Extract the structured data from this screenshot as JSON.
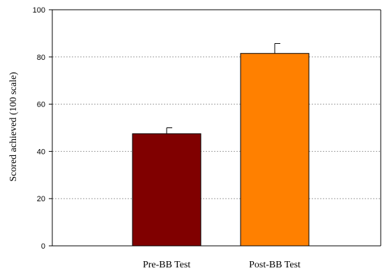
{
  "chart_data": {
    "type": "bar",
    "title": "",
    "xlabel": "",
    "ylabel": "Scored achieved (100 scale)",
    "categories": [
      "Pre-BB Test",
      "Post-BB Test"
    ],
    "values": [
      47.5,
      81.5
    ],
    "errors": [
      2.5,
      4.2
    ],
    "bar_colors": [
      "#800000",
      "#ff8000"
    ],
    "ylim": [
      0,
      100
    ],
    "yticks": [
      0,
      20,
      40,
      60,
      80,
      100
    ],
    "gridlines": [
      20,
      40,
      60,
      80
    ],
    "grid": true,
    "legend": "none"
  }
}
